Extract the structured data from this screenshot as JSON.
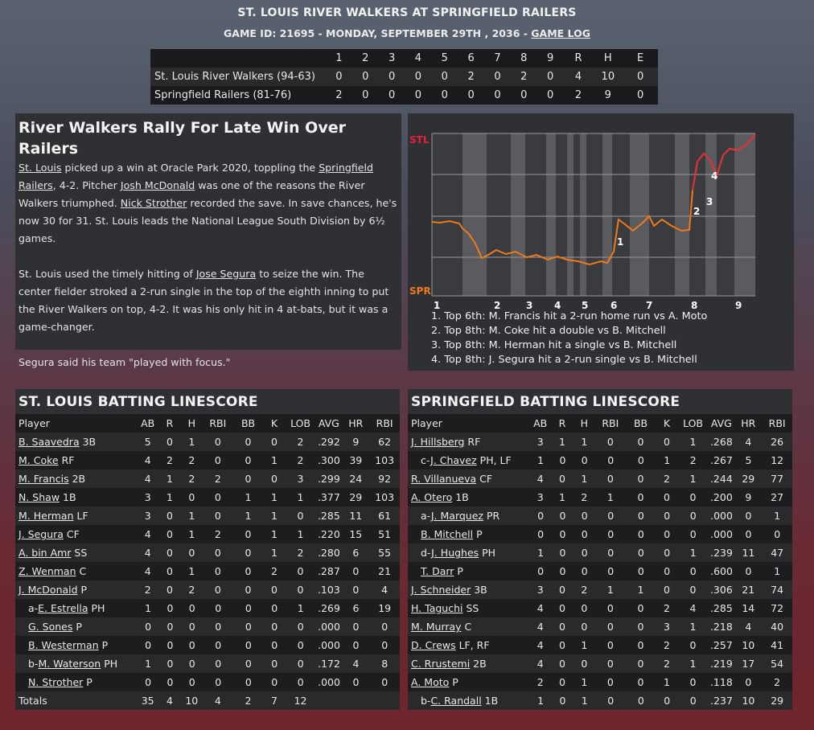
{
  "header": {
    "title": "ST. LOUIS RIVER WALKERS AT SPRINGFIELD RAILERS",
    "sub_prefix": "GAME ID: 21695 - MONDAY, SEPTEMBER 29TH , 2036 - ",
    "game_log": "GAME LOG"
  },
  "linescore": {
    "headers": [
      "1",
      "2",
      "3",
      "4",
      "5",
      "6",
      "7",
      "8",
      "9",
      "R",
      "H",
      "E"
    ],
    "teams": [
      {
        "name": "St. Louis River Walkers (94-63)",
        "cells": [
          "0",
          "0",
          "0",
          "0",
          "0",
          "2",
          "0",
          "2",
          "0",
          "4",
          "10",
          "0"
        ]
      },
      {
        "name": "Springfield Railers (81-76)",
        "cells": [
          "2",
          "0",
          "0",
          "0",
          "0",
          "0",
          "0",
          "0",
          "0",
          "2",
          "9",
          "0"
        ]
      }
    ]
  },
  "recap": {
    "headline": "River Walkers Rally For Late Win Over Railers",
    "p1": [
      {
        "t": "St. Louis",
        "link": true
      },
      {
        "t": " picked up a win at Oracle Park 2020, toppling the "
      },
      {
        "t": "Springfield Railers",
        "link": true
      },
      {
        "t": ", 4-2. Pitcher "
      },
      {
        "t": "Josh McDonald",
        "link": true
      },
      {
        "t": " was one of the reasons the River Walkers triumphed. "
      },
      {
        "t": "Nick Strother",
        "link": true
      },
      {
        "t": " recorded the save. In save chances, he's now 30 for 31. St. Louis leads the National League South Division by 6½ games."
      }
    ],
    "p2": [
      {
        "t": "St. Louis used the timely hitting of "
      },
      {
        "t": "Jose Segura",
        "link": true
      },
      {
        "t": " to seize the win. The center fielder stroked a 2-run single in the top of the eighth inning to put the River Walkers on top, 4-2. It was his only hit in 4 at-bats, but it was a game-changer."
      }
    ],
    "p3": [
      {
        "t": "Segura said his team \"played with focus.\""
      }
    ]
  },
  "win_prob": {
    "top_label": "STL",
    "bottom_label": "SPR",
    "top_color": "#e8203a",
    "bottom_color": "#f07a18",
    "innings": [
      "1",
      "2",
      "3",
      "4",
      "5",
      "6",
      "7",
      "8",
      "9"
    ],
    "markers": [
      "1",
      "2",
      "3",
      "4"
    ],
    "notes": [
      "1. Top 6th: M. Francis hit a 2-run home run vs A. Moto",
      "2. Top 8th: M. Coke hit a double vs B. Mitchell",
      "3. Top 8th: M. Herman hit a single vs B. Mitchell",
      "4. Top 8th: J. Segura hit a 2-run single vs B. Mitchell"
    ]
  },
  "stl_batting": {
    "title": "ST. LOUIS BATTING LINESCORE",
    "columns": [
      "Player",
      "AB",
      "R",
      "H",
      "RBI",
      "BB",
      "K",
      "LOB",
      "AVG",
      "HR",
      "RBI"
    ],
    "rows": [
      {
        "prefix": "",
        "name": "B. Saavedra",
        "pos": " 3B",
        "sub": false,
        "stats": [
          "5",
          "0",
          "1",
          "0",
          "0",
          "0",
          "2",
          ".292",
          "9",
          "62"
        ]
      },
      {
        "prefix": "",
        "name": "M. Coke",
        "pos": " RF",
        "sub": false,
        "stats": [
          "4",
          "2",
          "2",
          "0",
          "0",
          "1",
          "2",
          ".300",
          "39",
          "103"
        ]
      },
      {
        "prefix": "",
        "name": "M. Francis",
        "pos": " 2B",
        "sub": false,
        "stats": [
          "4",
          "1",
          "2",
          "2",
          "0",
          "0",
          "3",
          ".299",
          "24",
          "92"
        ]
      },
      {
        "prefix": "",
        "name": "N. Shaw",
        "pos": " 1B",
        "sub": false,
        "stats": [
          "3",
          "1",
          "0",
          "0",
          "1",
          "1",
          "1",
          ".377",
          "29",
          "103"
        ]
      },
      {
        "prefix": "",
        "name": "M. Herman",
        "pos": " LF",
        "sub": false,
        "stats": [
          "3",
          "0",
          "1",
          "0",
          "1",
          "1",
          "0",
          ".285",
          "11",
          "61"
        ]
      },
      {
        "prefix": "",
        "name": "J. Segura",
        "pos": " CF",
        "sub": false,
        "stats": [
          "4",
          "0",
          "1",
          "2",
          "0",
          "1",
          "1",
          ".220",
          "15",
          "51"
        ]
      },
      {
        "prefix": "",
        "name": "A. bin Amr",
        "pos": " SS",
        "sub": false,
        "stats": [
          "4",
          "0",
          "0",
          "0",
          "0",
          "1",
          "2",
          ".280",
          "6",
          "55"
        ]
      },
      {
        "prefix": "",
        "name": "Z. Wenman",
        "pos": " C",
        "sub": false,
        "stats": [
          "4",
          "0",
          "1",
          "0",
          "0",
          "2",
          "0",
          ".287",
          "0",
          "21"
        ]
      },
      {
        "prefix": "",
        "name": "J. McDonald",
        "pos": " P",
        "sub": false,
        "stats": [
          "2",
          "0",
          "2",
          "0",
          "0",
          "0",
          "0",
          ".103",
          "0",
          "4"
        ]
      },
      {
        "prefix": "a-",
        "name": "E. Estrella",
        "pos": " PH",
        "sub": true,
        "stats": [
          "1",
          "0",
          "0",
          "0",
          "0",
          "0",
          "1",
          ".269",
          "6",
          "19"
        ]
      },
      {
        "prefix": "",
        "name": "G. Sones",
        "pos": " P",
        "sub": true,
        "stats": [
          "0",
          "0",
          "0",
          "0",
          "0",
          "0",
          "0",
          ".000",
          "0",
          "0"
        ]
      },
      {
        "prefix": "",
        "name": "B. Westerman",
        "pos": " P",
        "sub": true,
        "stats": [
          "0",
          "0",
          "0",
          "0",
          "0",
          "0",
          "0",
          ".000",
          "0",
          "0"
        ]
      },
      {
        "prefix": "b-",
        "name": "M. Waterson",
        "pos": " PH",
        "sub": true,
        "stats": [
          "1",
          "0",
          "0",
          "0",
          "0",
          "0",
          "0",
          ".172",
          "4",
          "8"
        ]
      },
      {
        "prefix": "",
        "name": "N. Strother",
        "pos": " P",
        "sub": true,
        "stats": [
          "0",
          "0",
          "0",
          "0",
          "0",
          "0",
          "0",
          ".000",
          "0",
          "0"
        ]
      }
    ],
    "totals": {
      "label": "Totals",
      "stats": [
        "35",
        "4",
        "10",
        "4",
        "2",
        "7",
        "12",
        "",
        "",
        ""
      ]
    }
  },
  "spr_batting": {
    "title": "SPRINGFIELD BATTING LINESCORE",
    "columns": [
      "Player",
      "AB",
      "R",
      "H",
      "RBI",
      "BB",
      "K",
      "LOB",
      "AVG",
      "HR",
      "RBI"
    ],
    "rows": [
      {
        "prefix": "",
        "name": "J. Hillsberg",
        "pos": " RF",
        "sub": false,
        "stats": [
          "3",
          "1",
          "1",
          "0",
          "0",
          "0",
          "1",
          ".268",
          "4",
          "26"
        ]
      },
      {
        "prefix": "c-",
        "name": "J. Chavez",
        "pos": " PH, LF",
        "sub": true,
        "stats": [
          "1",
          "0",
          "0",
          "0",
          "0",
          "1",
          "2",
          ".267",
          "5",
          "12"
        ]
      },
      {
        "prefix": "",
        "name": "R. Villanueva",
        "pos": " CF",
        "sub": false,
        "stats": [
          "4",
          "0",
          "1",
          "0",
          "0",
          "2",
          "1",
          ".244",
          "29",
          "77"
        ]
      },
      {
        "prefix": "",
        "name": "A. Otero",
        "pos": " 1B",
        "sub": false,
        "stats": [
          "3",
          "1",
          "2",
          "1",
          "0",
          "0",
          "0",
          ".200",
          "9",
          "27"
        ]
      },
      {
        "prefix": "a-",
        "name": "J. Marquez",
        "pos": " PR",
        "sub": true,
        "stats": [
          "0",
          "0",
          "0",
          "0",
          "0",
          "0",
          "0",
          ".000",
          "0",
          "1"
        ]
      },
      {
        "prefix": "",
        "name": "B. Mitchell",
        "pos": " P",
        "sub": true,
        "stats": [
          "0",
          "0",
          "0",
          "0",
          "0",
          "0",
          "0",
          ".000",
          "0",
          "0"
        ]
      },
      {
        "prefix": "d-",
        "name": "J. Hughes",
        "pos": " PH",
        "sub": true,
        "stats": [
          "1",
          "0",
          "0",
          "0",
          "0",
          "0",
          "1",
          ".239",
          "11",
          "47"
        ]
      },
      {
        "prefix": "",
        "name": "T. Darr",
        "pos": " P",
        "sub": true,
        "stats": [
          "0",
          "0",
          "0",
          "0",
          "0",
          "0",
          "0",
          ".600",
          "0",
          "1"
        ]
      },
      {
        "prefix": "",
        "name": "J. Schneider",
        "pos": " 3B",
        "sub": false,
        "stats": [
          "3",
          "0",
          "2",
          "1",
          "1",
          "0",
          "0",
          ".306",
          "21",
          "74"
        ]
      },
      {
        "prefix": "",
        "name": "H. Taguchi",
        "pos": " SS",
        "sub": false,
        "stats": [
          "4",
          "0",
          "0",
          "0",
          "0",
          "2",
          "4",
          ".285",
          "14",
          "72"
        ]
      },
      {
        "prefix": "",
        "name": "M. Murray",
        "pos": " C",
        "sub": false,
        "stats": [
          "4",
          "0",
          "0",
          "0",
          "0",
          "3",
          "1",
          ".218",
          "4",
          "40"
        ]
      },
      {
        "prefix": "",
        "name": "D. Crews",
        "pos": " LF, RF",
        "sub": false,
        "stats": [
          "4",
          "0",
          "1",
          "0",
          "0",
          "2",
          "0",
          ".257",
          "10",
          "41"
        ]
      },
      {
        "prefix": "",
        "name": "C. Rrustemi",
        "pos": " 2B",
        "sub": false,
        "stats": [
          "4",
          "0",
          "0",
          "0",
          "0",
          "2",
          "1",
          ".219",
          "17",
          "54"
        ]
      },
      {
        "prefix": "",
        "name": "A. Moto",
        "pos": " P",
        "sub": false,
        "stats": [
          "2",
          "0",
          "1",
          "0",
          "0",
          "1",
          "0",
          ".118",
          "0",
          "2"
        ]
      },
      {
        "prefix": "b-",
        "name": "C. Randall",
        "pos": " 1B",
        "sub": true,
        "stats": [
          "1",
          "0",
          "1",
          "0",
          "0",
          "0",
          "0",
          ".237",
          "10",
          "29"
        ]
      }
    ]
  }
}
